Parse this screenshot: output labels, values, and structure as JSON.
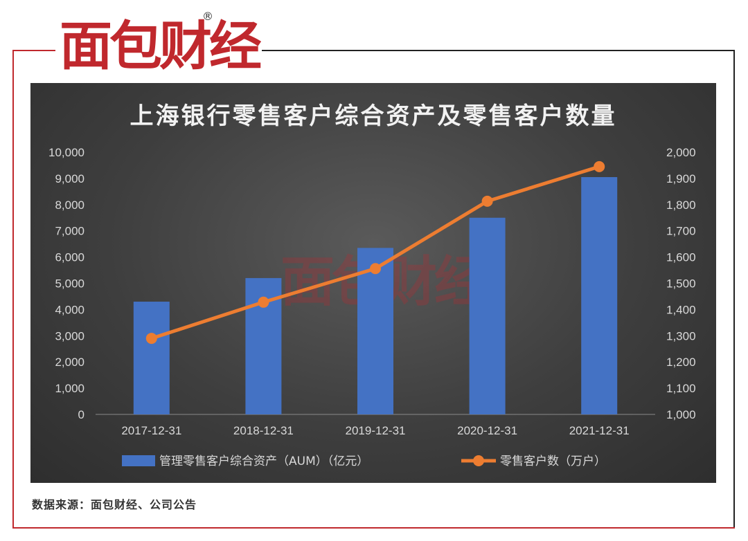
{
  "brand": {
    "logo_text": "面包财经",
    "registered_mark": "®"
  },
  "source_note": "数据来源：面包财经、公司公告",
  "chart_data": {
    "type": "bar",
    "title": "上海银行零售客户综合资产及零售客户数量",
    "categories": [
      "2017-12-31",
      "2018-12-31",
      "2019-12-31",
      "2020-12-31",
      "2021-12-31"
    ],
    "series": [
      {
        "name": "管理零售客户综合资产（AUM）（亿元）",
        "type": "bar",
        "axis": "left",
        "color": "#4472c4",
        "values": [
          4300,
          5200,
          6350,
          7500,
          9050
        ]
      },
      {
        "name": "零售客户数（万户）",
        "type": "line",
        "axis": "right",
        "color": "#ed7d31",
        "values": [
          1290,
          1428,
          1556,
          1813,
          1945
        ]
      }
    ],
    "y_left": {
      "ylim": [
        0,
        10000
      ],
      "ticks": [
        "0",
        "1,000",
        "2,000",
        "3,000",
        "4,000",
        "5,000",
        "6,000",
        "7,000",
        "8,000",
        "9,000",
        "10,000"
      ]
    },
    "y_right": {
      "ylim": [
        1000,
        2000
      ],
      "ticks": [
        "1,000",
        "1,100",
        "1,200",
        "1,300",
        "1,400",
        "1,500",
        "1,600",
        "1,700",
        "1,800",
        "1,900",
        "2,000"
      ]
    },
    "grid": false,
    "legend": "bottom"
  }
}
